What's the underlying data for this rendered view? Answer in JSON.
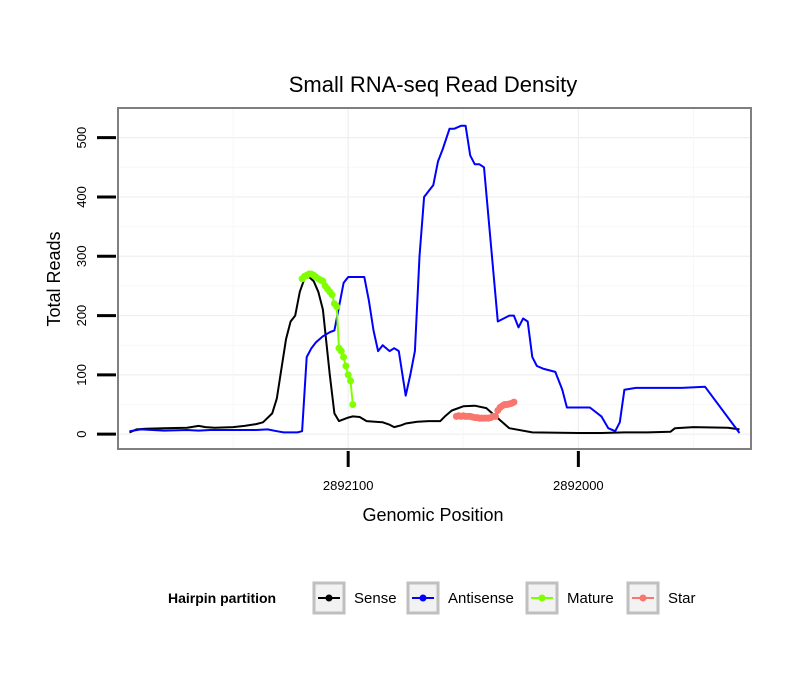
{
  "chart_data": {
    "type": "line",
    "title": "Small RNA-seq Read Density",
    "xlabel": "Genomic Position",
    "ylabel": "Total Reads",
    "x_reversed": true,
    "xlim": [
      2892200,
      2891925
    ],
    "ylim": [
      -25,
      550
    ],
    "x_ticks": [
      2892100,
      2892000
    ],
    "x_tick_labels": [
      "2892100",
      "2892000"
    ],
    "y_ticks": [
      0,
      100,
      200,
      300,
      400,
      500
    ],
    "y_tick_labels": [
      "0",
      "100",
      "200",
      "300",
      "400",
      "500"
    ],
    "grid": true,
    "legend": {
      "title": "Hairpin partition",
      "position": "bottom",
      "entries": [
        {
          "label": "Sense",
          "color": "#000000"
        },
        {
          "label": "Antisense",
          "color": "#0000ff"
        },
        {
          "label": "Mature",
          "color": "#80ff00"
        },
        {
          "label": "Star",
          "color": "#f8766d"
        }
      ]
    },
    "series": [
      {
        "name": "Sense",
        "color": "#000000",
        "markers": false,
        "x": [
          2892195,
          2892192,
          2892188,
          2892180,
          2892170,
          2892165,
          2892162,
          2892158,
          2892150,
          2892145,
          2892140,
          2892137,
          2892133,
          2892131,
          2892129,
          2892127,
          2892125,
          2892123,
          2892121,
          2892119,
          2892117,
          2892115,
          2892113,
          2892111,
          2892108,
          2892106,
          2892104,
          2892102,
          2892100,
          2892098,
          2892095,
          2892092,
          2892085,
          2892082,
          2892080,
          2892077,
          2892075,
          2892070,
          2892065,
          2892060,
          2892058,
          2892055,
          2892050,
          2892045,
          2892040,
          2892030,
          2892020,
          2892000,
          2891990,
          2891980,
          2891970,
          2891960,
          2891958,
          2891950,
          2891935,
          2891930
        ],
        "y": [
          3,
          8,
          9,
          10,
          11,
          14,
          12,
          11,
          12,
          14,
          17,
          20,
          35,
          60,
          110,
          160,
          190,
          200,
          240,
          262,
          265,
          258,
          240,
          210,
          100,
          35,
          22,
          25,
          28,
          30,
          29,
          22,
          20,
          16,
          12,
          15,
          18,
          21,
          22,
          22,
          30,
          40,
          47,
          48,
          44,
          10,
          3,
          2,
          2,
          3,
          3,
          4,
          10,
          12,
          11,
          8
        ]
      },
      {
        "name": "Antisense",
        "color": "#0000ff",
        "markers": false,
        "x": [
          2892195,
          2892190,
          2892180,
          2892170,
          2892165,
          2892160,
          2892150,
          2892140,
          2892135,
          2892131,
          2892128,
          2892126,
          2892124,
          2892122,
          2892120,
          2892118,
          2892116,
          2892114,
          2892111,
          2892108,
          2892106,
          2892104,
          2892102,
          2892100,
          2892098,
          2892093,
          2892091,
          2892089,
          2892087,
          2892085,
          2892082,
          2892080,
          2892078,
          2892075,
          2892073,
          2892071,
          2892069,
          2892067,
          2892065,
          2892063,
          2892061,
          2892059,
          2892056,
          2892054,
          2892051,
          2892049,
          2892047,
          2892045,
          2892043,
          2892041,
          2892035,
          2892030,
          2892028,
          2892026,
          2892024,
          2892022,
          2892020,
          2892018,
          2892015,
          2892010,
          2892007,
          2892005,
          2891995,
          2891990,
          2891987,
          2891984,
          2891982,
          2891980,
          2891975,
          2891970,
          2891960,
          2891955,
          2891945,
          2891930
        ],
        "y": [
          5,
          8,
          6,
          7,
          6,
          7,
          7,
          7,
          8,
          5,
          3,
          3,
          3,
          3,
          5,
          130,
          145,
          155,
          165,
          172,
          175,
          215,
          255,
          265,
          265,
          265,
          225,
          175,
          140,
          150,
          140,
          145,
          140,
          65,
          100,
          140,
          300,
          400,
          410,
          420,
          460,
          480,
          515,
          515,
          520,
          520,
          470,
          455,
          455,
          450,
          190,
          200,
          200,
          180,
          195,
          190,
          130,
          115,
          110,
          105,
          75,
          45,
          45,
          30,
          10,
          5,
          20,
          75,
          78,
          78,
          78,
          78,
          80,
          2
        ]
      },
      {
        "name": "Mature",
        "color": "#80ff00",
        "markers": true,
        "x": [
          2892120,
          2892119,
          2892118,
          2892117,
          2892116,
          2892115,
          2892114,
          2892113,
          2892112,
          2892111,
          2892110,
          2892109,
          2892108,
          2892107,
          2892106,
          2892105,
          2892104,
          2892103,
          2892102,
          2892101,
          2892100,
          2892099,
          2892098
        ],
        "y": [
          262,
          266,
          268,
          270,
          270,
          268,
          265,
          262,
          260,
          258,
          250,
          245,
          240,
          235,
          220,
          215,
          145,
          140,
          130,
          115,
          100,
          90,
          50
        ]
      },
      {
        "name": "Star",
        "color": "#f8766d",
        "markers": true,
        "x": [
          2892053,
          2892052,
          2892051,
          2892050,
          2892049,
          2892048,
          2892047,
          2892046,
          2892045,
          2892044,
          2892043,
          2892042,
          2892041,
          2892040,
          2892039,
          2892038,
          2892037,
          2892036,
          2892035,
          2892034,
          2892033,
          2892032,
          2892031,
          2892030,
          2892029,
          2892028
        ],
        "y": [
          30,
          31,
          30,
          31,
          30,
          30,
          30,
          29,
          28,
          28,
          27,
          27,
          27,
          27,
          27,
          28,
          30,
          30,
          40,
          45,
          48,
          50,
          50,
          51,
          52,
          54
        ]
      }
    ]
  }
}
